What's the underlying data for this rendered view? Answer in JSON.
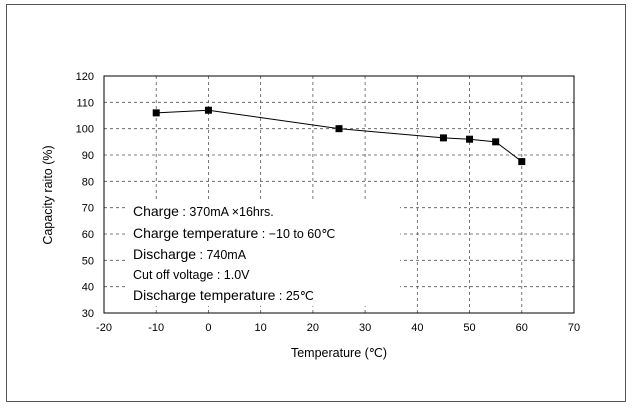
{
  "chart_data": {
    "type": "line",
    "title": "",
    "xlabel": "Temperature (℃)",
    "ylabel": "Capacity raito (%)",
    "xlim": [
      -20,
      70
    ],
    "ylim": [
      30,
      120
    ],
    "xticks": [
      -20,
      -10,
      0,
      10,
      20,
      30,
      40,
      50,
      60,
      70
    ],
    "yticks": [
      30,
      40,
      50,
      60,
      70,
      80,
      90,
      100,
      110,
      120
    ],
    "grid": true,
    "grid_style": "dashed",
    "marker": "square",
    "series": [
      {
        "x": [
          -10,
          0,
          25,
          45,
          50,
          55,
          60
        ],
        "y": [
          106,
          107,
          100,
          96.5,
          96,
          95,
          87.5
        ]
      }
    ],
    "annotations": [
      {
        "label": "Charge",
        "value": " : 370mA ×16hrs."
      },
      {
        "label": "Charge temperature",
        "value": " : −10 to 60℃"
      },
      {
        "label": "Discharge",
        "value": " : 740mA"
      },
      {
        "label": "",
        "value": "Cut off voltage : 1.0V"
      },
      {
        "label": "Discharge temperature",
        "value": " : 25℃"
      }
    ]
  }
}
